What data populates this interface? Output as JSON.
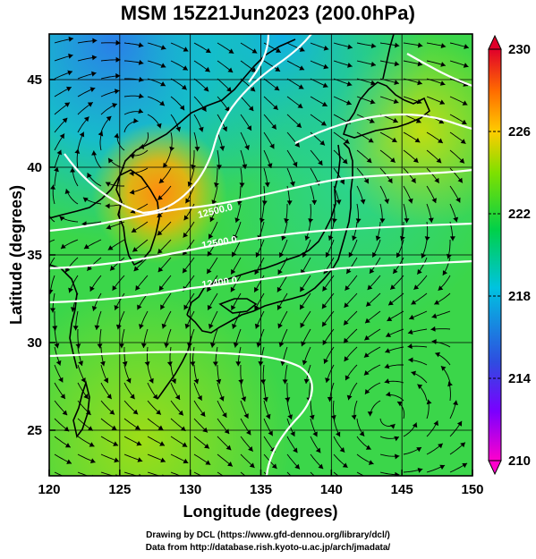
{
  "title": "MSM 15Z21Jun2023 (200.0hPa)",
  "chart_data": {
    "type": "heatmap",
    "title": "MSM 15Z21Jun2023 (200.0hPa)",
    "xlabel": "Longitude (degrees)",
    "ylabel": "Latitude  (degrees)",
    "xlim": [
      120,
      150
    ],
    "ylim": [
      22.4,
      47.6
    ],
    "xticks": [
      "120",
      "125",
      "130",
      "135",
      "140",
      "145",
      "150"
    ],
    "yticks": [
      "25",
      "30",
      "35",
      "40",
      "45"
    ],
    "grid": true,
    "colorbar": {
      "range": [
        210,
        230
      ],
      "ticks": [
        "230",
        "226",
        "222",
        "218",
        "214",
        "210"
      ],
      "colors": [
        "#ff00cc",
        "#7a00ff",
        "#2e4de0",
        "#00c3e0",
        "#00d04a",
        "#7fe000",
        "#ffcc00",
        "#ff6a00",
        "#e0002a"
      ]
    },
    "contours": [
      {
        "label": "12500.0",
        "lon": 131.3,
        "lat": 38.8
      },
      {
        "label": "12500.0",
        "lon": 132.0,
        "lat": 37.0
      },
      {
        "label": "12400.0",
        "lon": 131.5,
        "lat": 34.5
      }
    ]
  },
  "credits": {
    "line1": "Drawing by DCL (https://www.gfd-dennou.org/library/dcl/)",
    "line2": "Data from http://database.rish.kyoto-u.ac.jp/arch/jmadata/"
  }
}
